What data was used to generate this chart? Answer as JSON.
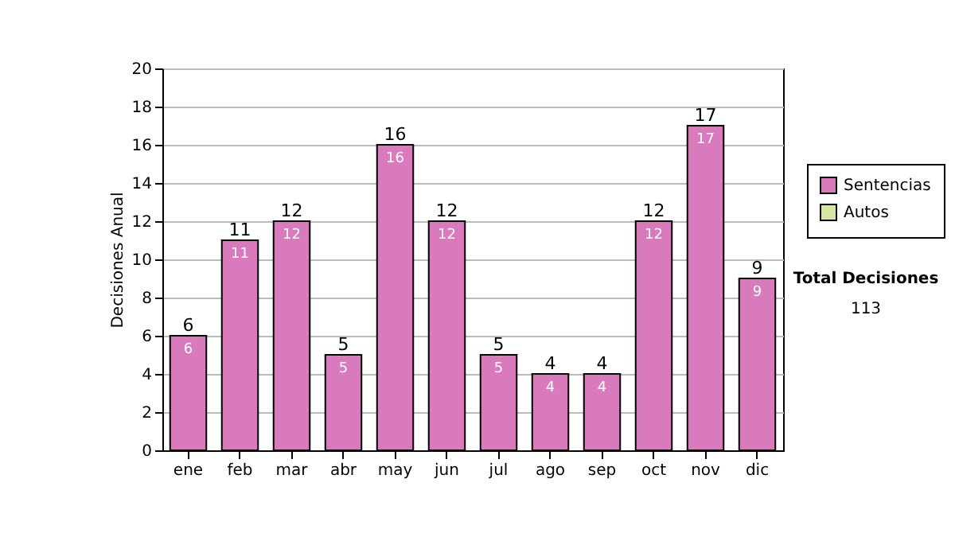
{
  "chart_data": {
    "type": "bar",
    "ylabel": "Decisiones Anual",
    "categories": [
      "ene",
      "feb",
      "mar",
      "abr",
      "may",
      "jun",
      "jul",
      "ago",
      "sep",
      "oct",
      "nov",
      "dic"
    ],
    "series": [
      {
        "name": "Sentencias",
        "color": "#d97abd",
        "values": [
          6,
          11,
          12,
          5,
          16,
          12,
          5,
          4,
          4,
          12,
          17,
          9
        ]
      },
      {
        "name": "Autos",
        "color": "#d4e6a0",
        "values": [
          null,
          null,
          null,
          null,
          null,
          null,
          null,
          null,
          null,
          null,
          null,
          null
        ]
      }
    ],
    "stacked": true,
    "data_labels": true,
    "totals": [
      "6",
      "11",
      "12",
      "5",
      "16",
      "12",
      "5",
      "4",
      "4",
      "12",
      "17",
      "9"
    ],
    "ylim": [
      0,
      20
    ],
    "yticks": [
      0,
      2,
      4,
      6,
      8,
      10,
      12,
      14,
      16,
      18,
      20
    ],
    "grid": "y",
    "legend": "right",
    "annotations": [
      "Total Decisiones",
      "113"
    ]
  }
}
